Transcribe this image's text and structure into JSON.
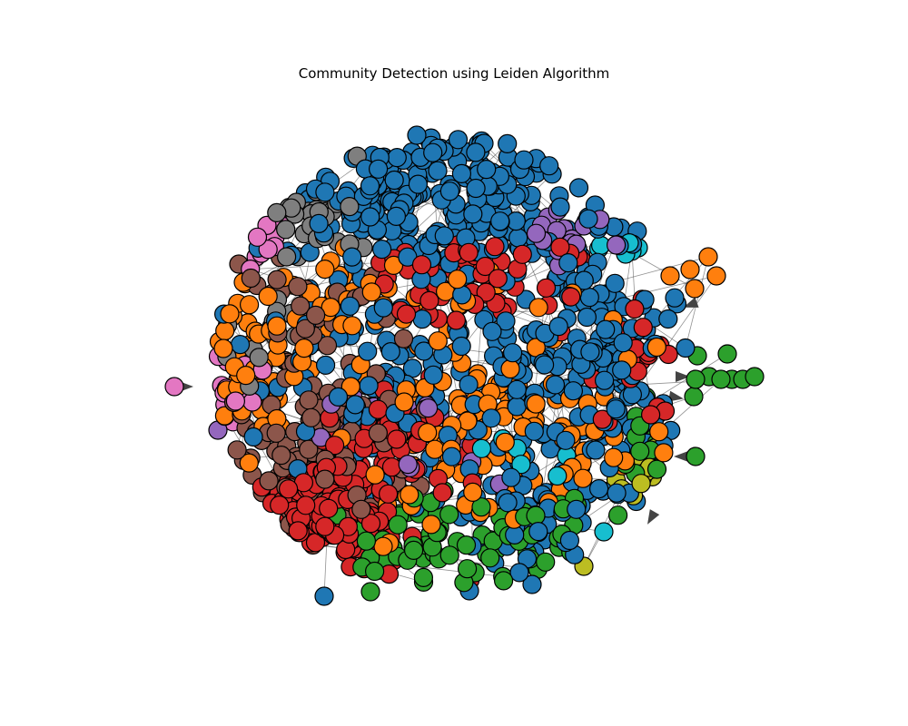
{
  "title": "Community Detection using Leiden Algorithm",
  "chart_data": {
    "type": "network",
    "title": "Community Detection using Leiden Algorithm",
    "directed": true,
    "axes_visible": false,
    "legend": "none",
    "node_style": {
      "edge_color": "#000000",
      "arrow_color": "#444444"
    },
    "communities": [
      {
        "id": 0,
        "color": "#1f77b4"
      },
      {
        "id": 1,
        "color": "#ff7f0e"
      },
      {
        "id": 2,
        "color": "#2ca02c"
      },
      {
        "id": 3,
        "color": "#d62728"
      },
      {
        "id": 4,
        "color": "#9467bd"
      },
      {
        "id": 5,
        "color": "#8c564b"
      },
      {
        "id": 6,
        "color": "#e377c2"
      },
      {
        "id": 7,
        "color": "#7f7f7f"
      },
      {
        "id": 8,
        "color": "#bcbd22"
      },
      {
        "id": 9,
        "color": "#17becf"
      }
    ]
  }
}
